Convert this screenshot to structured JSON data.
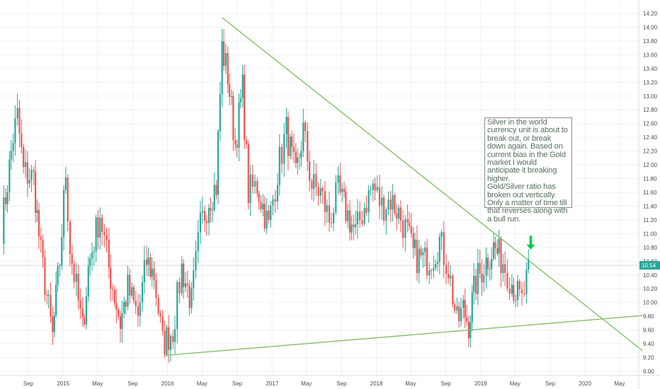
{
  "chart_data": {
    "type": "candlestick",
    "title": "",
    "xlabel": "",
    "ylabel": "",
    "ylim": [
      8.98,
      14.32
    ],
    "grid": true,
    "y_ticks": [
      "9.00",
      "9.20",
      "9.40",
      "9.60",
      "9.80",
      "10.00",
      "10.20",
      "10.40",
      "10.60",
      "10.80",
      "11.00",
      "11.20",
      "11.40",
      "11.60",
      "11.80",
      "12.00",
      "12.20",
      "12.40",
      "12.60",
      "12.80",
      "13.00",
      "13.20",
      "13.40",
      "13.60",
      "13.80",
      "14.00",
      "14.20"
    ],
    "x_ticks": [
      {
        "label": "Sep",
        "date": "2014-09"
      },
      {
        "label": "2015",
        "date": "2015-01"
      },
      {
        "label": "May",
        "date": "2015-05"
      },
      {
        "label": "Sep",
        "date": "2015-09"
      },
      {
        "label": "2016",
        "date": "2016-01"
      },
      {
        "label": "May",
        "date": "2016-05"
      },
      {
        "label": "Sep",
        "date": "2016-09"
      },
      {
        "label": "2017",
        "date": "2017-01"
      },
      {
        "label": "May",
        "date": "2017-05"
      },
      {
        "label": "Sep",
        "date": "2017-09"
      },
      {
        "label": "2018",
        "date": "2018-01"
      },
      {
        "label": "May",
        "date": "2018-05"
      },
      {
        "label": "Sep",
        "date": "2018-09"
      },
      {
        "label": "2019",
        "date": "2019-01"
      },
      {
        "label": "May",
        "date": "2019-05"
      },
      {
        "label": "Sep",
        "date": "2019-09"
      },
      {
        "label": "2020",
        "date": "2020-01"
      },
      {
        "label": "May",
        "date": "2020-05"
      }
    ],
    "last_price": "10.54",
    "colors": {
      "up": "#26a69a",
      "down": "#ef5350",
      "trendline": "#7cbc5f",
      "arrow": "#00c853",
      "grid": "#eef0f3",
      "badge": "#26a69a"
    },
    "trendlines": [
      {
        "name": "upper-trendline",
        "points": [
          {
            "date": "2016-07-10",
            "value": 14.14
          },
          {
            "date": "2020-07-20",
            "value": 9.3
          }
        ]
      },
      {
        "name": "lower-trendline",
        "points": [
          {
            "date": "2015-12-20",
            "value": 9.23
          },
          {
            "date": "2020-07-20",
            "value": 9.81
          }
        ]
      }
    ],
    "arrow": {
      "date": "2019-06-25",
      "value_top": 10.97,
      "value_bottom": 10.77
    },
    "segments": [
      [
        "2014-06-01",
        11.1
      ],
      [
        "2014-07-10",
        12.4
      ],
      [
        "2014-07-25",
        12.7
      ],
      [
        "2014-08-15",
        11.9
      ],
      [
        "2014-09-20",
        11.8
      ],
      [
        "2014-10-15",
        10.7
      ],
      [
        "2014-11-05",
        10.1
      ],
      [
        "2014-11-25",
        9.5
      ],
      [
        "2014-12-20",
        10.6
      ],
      [
        "2015-01-10",
        11.9
      ],
      [
        "2015-01-25",
        10.8
      ],
      [
        "2015-03-10",
        9.6
      ],
      [
        "2015-03-30",
        10.5
      ],
      [
        "2015-05-10",
        11.3
      ],
      [
        "2015-06-10",
        10.5
      ],
      [
        "2015-07-20",
        9.7
      ],
      [
        "2015-08-15",
        10.2
      ],
      [
        "2015-09-20",
        9.8
      ],
      [
        "2015-10-20",
        10.6
      ],
      [
        "2015-11-15",
        10.4
      ],
      [
        "2015-12-15",
        9.4
      ],
      [
        "2016-01-20",
        9.6
      ],
      [
        "2016-02-20",
        10.5
      ],
      [
        "2016-03-25",
        10.0
      ],
      [
        "2016-04-25",
        11.1
      ],
      [
        "2016-05-25",
        11.5
      ],
      [
        "2016-06-20",
        11.7
      ],
      [
        "2016-07-10",
        13.7
      ],
      [
        "2016-07-30",
        13.3
      ],
      [
        "2016-08-25",
        12.3
      ],
      [
        "2016-09-20",
        13.1
      ],
      [
        "2016-10-10",
        11.6
      ],
      [
        "2016-11-10",
        11.7
      ],
      [
        "2016-12-20",
        11.1
      ],
      [
        "2017-01-20",
        11.9
      ],
      [
        "2017-02-20",
        12.5
      ],
      [
        "2017-03-25",
        11.8
      ],
      [
        "2017-04-20",
        12.5
      ],
      [
        "2017-05-20",
        11.7
      ],
      [
        "2017-06-20",
        11.6
      ],
      [
        "2017-07-20",
        11.2
      ],
      [
        "2017-08-20",
        11.6
      ],
      [
        "2017-09-10",
        11.4
      ],
      [
        "2017-10-20",
        11.0
      ],
      [
        "2017-11-20",
        11.4
      ],
      [
        "2017-12-20",
        11.7
      ],
      [
        "2018-01-20",
        11.4
      ],
      [
        "2018-02-20",
        11.5
      ],
      [
        "2018-03-20",
        11.3
      ],
      [
        "2018-04-20",
        11.0
      ],
      [
        "2018-05-10",
        10.7
      ],
      [
        "2018-06-20",
        10.6
      ],
      [
        "2018-07-20",
        10.7
      ],
      [
        "2018-08-10",
        10.9
      ],
      [
        "2018-09-10",
        10.5
      ],
      [
        "2018-10-10",
        9.7
      ],
      [
        "2018-11-01",
        9.9
      ],
      [
        "2018-11-20",
        9.7
      ],
      [
        "2018-12-15",
        10.3
      ],
      [
        "2019-01-20",
        10.6
      ],
      [
        "2019-02-15",
        10.8
      ],
      [
        "2019-03-20",
        10.6
      ],
      [
        "2019-04-20",
        10.3
      ],
      [
        "2019-05-10",
        10.1
      ],
      [
        "2019-05-25",
        10.0
      ],
      [
        "2019-06-10",
        10.3
      ],
      [
        "2019-06-25",
        10.5
      ]
    ]
  },
  "annotation": {
    "text": "Silver in the world currency unit is about to break out, or break down again. Based on current bias in the Gold market I would anticipate it breaking higher.\nGold/Silver ratio has broken out vertically.\nOnly a matter of time till that reverses along with a bull run."
  }
}
